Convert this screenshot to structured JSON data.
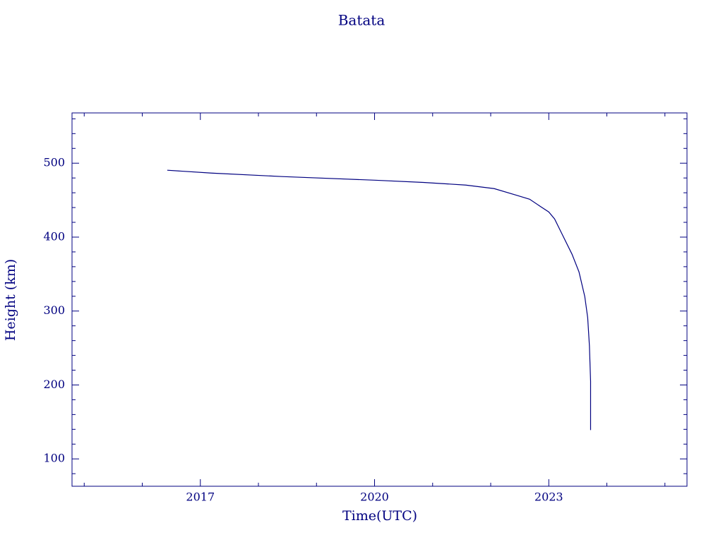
{
  "chart_data": {
    "type": "line",
    "title": "Batata",
    "xlabel": "Time(UTC)",
    "ylabel": "Height (km)",
    "x": [
      2016.43,
      2017.19,
      2018.41,
      2020.0,
      2020.84,
      2021.57,
      2022.06,
      2022.43,
      2022.67,
      2022.85,
      2023.0,
      2023.1,
      2023.22,
      2023.4,
      2023.52,
      2023.62,
      2023.67,
      2023.7,
      2023.72,
      2023.72
    ],
    "series": [
      {
        "name": "Height",
        "color": "#000080",
        "values": [
          490.5,
          486.6,
          481.9,
          477,
          474,
          470.4,
          465.6,
          457,
          451.3,
          441.8,
          434,
          424.6,
          405.5,
          376.9,
          353,
          319.6,
          291,
          252.7,
          205,
          139
        ]
      }
    ],
    "xlim": [
      2014.79,
      2025.38
    ],
    "xticks": [
      2017,
      2020,
      2023
    ],
    "xminorticks": [
      2015,
      2016,
      2018,
      2019,
      2021,
      2022,
      2024,
      2025
    ],
    "ylim": [
      63,
      568
    ],
    "yticks": [
      100,
      200,
      300,
      400,
      500
    ],
    "yminorticks": [
      80,
      120,
      140,
      160,
      180,
      220,
      240,
      260,
      280,
      320,
      340,
      360,
      380,
      420,
      440,
      460,
      480,
      520,
      540,
      560
    ],
    "color": "#000080"
  }
}
